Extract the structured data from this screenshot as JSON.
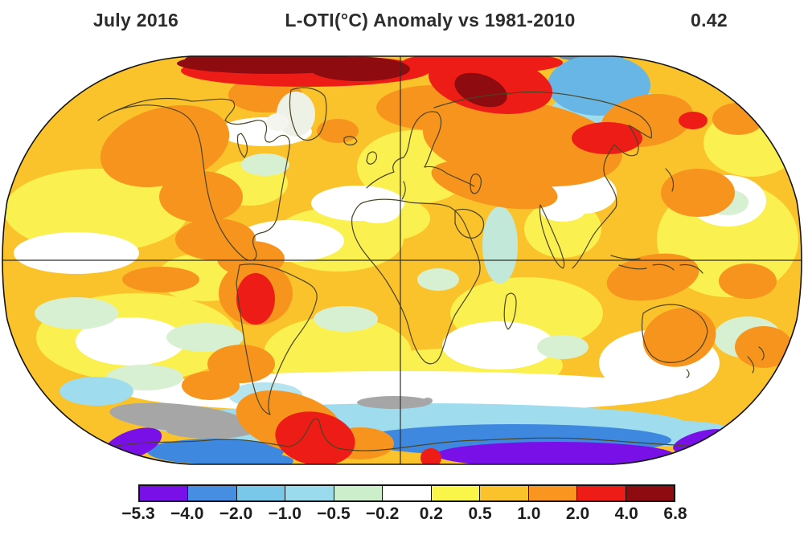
{
  "header": {
    "period": "July 2016",
    "title": "L-OTI(°C) Anomaly vs 1981-2010",
    "global_mean": "0.42"
  },
  "colorbar": {
    "tick_labels": [
      "−5.3",
      "−4.0",
      "−2.0",
      "−1.0",
      "−0.5",
      "−0.2",
      "0.2",
      "0.5",
      "1.0",
      "2.0",
      "4.0",
      "6.8"
    ],
    "segment_colors": [
      "#7a10e8",
      "#458ee2",
      "#79c8e9",
      "#9adcee",
      "#cdeecb",
      "#ffffff",
      "#f9f649",
      "#fbc32b",
      "#f8961f",
      "#ee1c16",
      "#8e0c10"
    ],
    "missing_data_color": "#a6a6a6"
  },
  "chart_data": {
    "type": "heatmap",
    "title": "L-OTI(°C) Anomaly vs 1981-2010",
    "subtitle": "July 2016",
    "global_mean_anomaly": 0.42,
    "units": "°C",
    "baseline_period": "1981-2010",
    "projection": "Robinson world map",
    "legend_position": "bottom",
    "colorbar_breaks_c": [
      -5.3,
      -4.0,
      -2.0,
      -1.0,
      -0.5,
      -0.2,
      0.2,
      0.5,
      1.0,
      2.0,
      4.0,
      6.8
    ],
    "colorbar_colors": [
      "#7a10e8",
      "#458ee2",
      "#79c8e9",
      "#9adcee",
      "#cdeecb",
      "#ffffff",
      "#f9f649",
      "#fbc32b",
      "#f8961f",
      "#ee1c16",
      "#8e0c10"
    ],
    "missing_data_color_gray": "#a6a6a6",
    "notable_features": [
      {
        "region": "High Arctic band (Canadian Arctic, Greenland, Kara/Laptev seas)",
        "anomaly_c": "4 to 6.8"
      },
      {
        "region": "Central Siberia",
        "anomaly_c": "2 to 4"
      },
      {
        "region": "Arctic Ocean north of East Siberia",
        "anomaly_c": "-2 to -0.5"
      },
      {
        "region": "Western Amazon / Peru",
        "anomaly_c": "2 to 4"
      },
      {
        "region": "Antarctic Peninsula / West Antarctica",
        "anomaly_c": "2 to 4"
      },
      {
        "region": "East Antarctic coast",
        "anomaly_c": "-5.3 to -2.0"
      },
      {
        "region": "Southern Ocean ring",
        "anomaly_c": "-1.0 to 0.2"
      },
      {
        "region": "Most mid-latitude land and ocean",
        "anomaly_c": "0.5 to 2.0"
      },
      {
        "region": "Patches near Antarctica",
        "anomaly_c": "missing data (gray)"
      }
    ]
  }
}
